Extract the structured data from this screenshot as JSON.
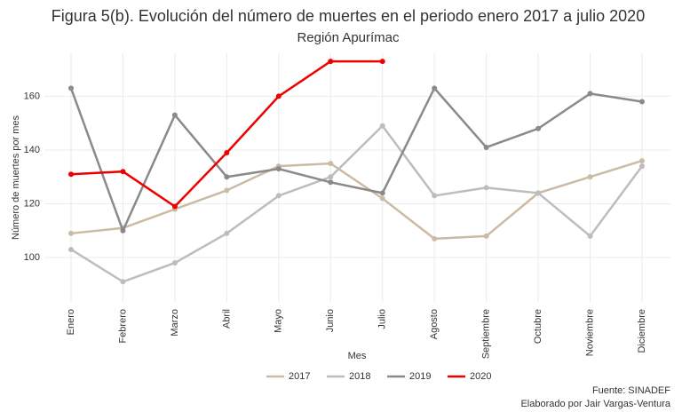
{
  "chart_data": {
    "type": "line",
    "title": "Figura 5(b). Evolución del número de muertes en el periodo enero 2017 a julio 2020",
    "subtitle": "Región Apurímac",
    "x_label": "Mes",
    "y_label": "Número de muertes por mes",
    "categories": [
      "Enero",
      "Febrero",
      "Marzo",
      "Abril",
      "Mayo",
      "Junio",
      "Julio",
      "Agosto",
      "Septiembre",
      "Octubre",
      "Noviembre",
      "Diciembre"
    ],
    "series": [
      {
        "name": "2017",
        "color": "#cbbba5",
        "values": [
          109,
          111,
          118,
          125,
          134,
          135,
          122,
          107,
          108,
          124,
          130,
          136
        ]
      },
      {
        "name": "2018",
        "color": "#bdbdbd",
        "values": [
          103,
          91,
          98,
          109,
          123,
          130,
          149,
          123,
          126,
          124,
          108,
          134
        ]
      },
      {
        "name": "2019",
        "color": "#8a8a8a",
        "values": [
          163,
          110,
          153,
          130,
          133,
          128,
          124,
          163,
          141,
          148,
          161,
          158
        ]
      },
      {
        "name": "2020",
        "color": "#ee0000",
        "values": [
          131,
          132,
          119,
          139,
          160,
          173,
          173,
          null,
          null,
          null,
          null,
          null
        ]
      }
    ],
    "ylim": [
      83.5,
      176
    ],
    "yticks": [
      100,
      120,
      140,
      160
    ],
    "grid": true,
    "legend": "bottom",
    "caption": [
      "Fuente: SINADEF",
      "Elaborado por Jair Vargas-Ventura"
    ]
  }
}
